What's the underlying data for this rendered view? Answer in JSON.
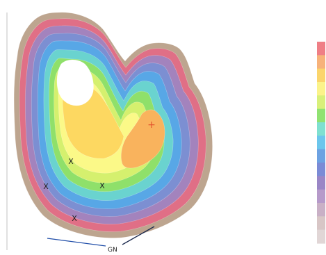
{
  "chart_data": {
    "type": "heatmap",
    "title": "",
    "xlabel": "",
    "ylabel": "",
    "grid": false,
    "legend": "right",
    "annotations": {
      "north_label": "GN"
    },
    "point_markers": [
      {
        "symbol": "X"
      },
      {
        "symbol": "X"
      },
      {
        "symbol": "X"
      },
      {
        "symbol": "X"
      }
    ],
    "peak_marker": {
      "symbol": "+"
    },
    "bands": [
      {
        "level": 1,
        "color": "#bda58f"
      },
      {
        "level": 2,
        "color": "#e06f86"
      },
      {
        "level": 3,
        "color": "#a383bd"
      },
      {
        "level": 4,
        "color": "#7c8fd2"
      },
      {
        "level": 5,
        "color": "#58a7e6"
      },
      {
        "level": 6,
        "color": "#6ad3cf"
      },
      {
        "level": 7,
        "color": "#8fe06a"
      },
      {
        "level": 8,
        "color": "#d5f06e"
      },
      {
        "level": 9,
        "color": "#fbf988"
      },
      {
        "level": 10,
        "color": "#fdd861"
      },
      {
        "level": 11,
        "color": "#f9b35d"
      },
      {
        "level": 12,
        "color": "#ffffff"
      }
    ],
    "colorbar": [
      "#ef7f86",
      "#f7b27a",
      "#fbd56c",
      "#fbf38a",
      "#d8f07a",
      "#90e272",
      "#7fe0d0",
      "#6cc6ec",
      "#6da2e2",
      "#7b8bd6",
      "#9a86c6",
      "#b69aca",
      "#c9b0c6",
      "#d8c6c6",
      "#e1d6d6"
    ],
    "frame_colors": {
      "left_axis": "#cccccc",
      "scale_bar": "#1f4da8",
      "direction_line": "#1d2b4f"
    }
  }
}
